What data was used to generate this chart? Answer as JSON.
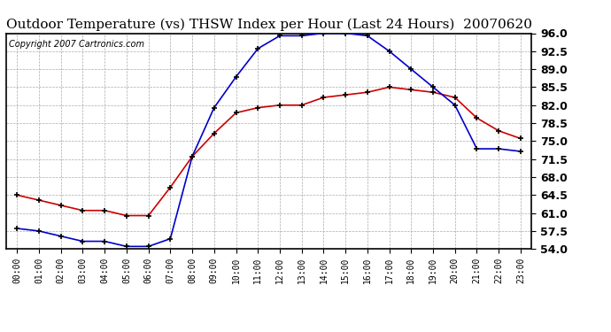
{
  "title": "Outdoor Temperature (vs) THSW Index per Hour (Last 24 Hours)  20070620",
  "copyright": "Copyright 2007 Cartronics.com",
  "hours": [
    0,
    1,
    2,
    3,
    4,
    5,
    6,
    7,
    8,
    9,
    10,
    11,
    12,
    13,
    14,
    15,
    16,
    17,
    18,
    19,
    20,
    21,
    22,
    23
  ],
  "temp_red": [
    64.5,
    63.5,
    62.5,
    61.5,
    61.5,
    60.5,
    60.5,
    66.0,
    72.0,
    76.5,
    80.5,
    81.5,
    82.0,
    82.0,
    83.5,
    84.0,
    84.5,
    85.5,
    85.0,
    84.5,
    83.5,
    79.5,
    77.0,
    75.5
  ],
  "thsw_blue": [
    58.0,
    57.5,
    56.5,
    55.5,
    55.5,
    54.5,
    54.5,
    56.0,
    72.0,
    81.5,
    87.5,
    93.0,
    95.5,
    95.5,
    96.0,
    96.0,
    95.5,
    92.5,
    89.0,
    85.5,
    82.0,
    73.5,
    73.5,
    73.0
  ],
  "ylim": [
    54.0,
    96.0
  ],
  "yticks": [
    54.0,
    57.5,
    61.0,
    64.5,
    68.0,
    71.5,
    75.0,
    78.5,
    82.0,
    85.5,
    89.0,
    92.5,
    96.0
  ],
  "bg_color": "#ffffff",
  "plot_bg_color": "#ffffff",
  "grid_color": "#aaaaaa",
  "line_color_red": "#cc0000",
  "line_color_blue": "#0000cc",
  "marker": "+",
  "marker_color": "#000000",
  "title_fontsize": 11,
  "copyright_fontsize": 7,
  "ytick_fontsize": 9,
  "xtick_fontsize": 7
}
